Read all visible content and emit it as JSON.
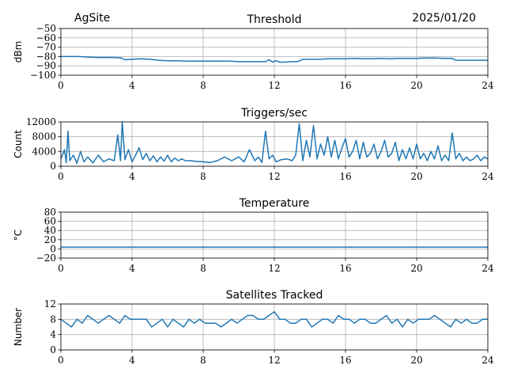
{
  "header": {
    "site": "AgSite",
    "date": "2025/01/20"
  },
  "colors": {
    "series": "#1f77b4",
    "grid": "#b0b0b0"
  },
  "chart_data": [
    {
      "type": "line",
      "title": "Threshold",
      "ylabel": "dBm",
      "xlim": [
        0,
        24
      ],
      "ylim": [
        -100,
        -50
      ],
      "xticks": [
        0,
        4,
        8,
        12,
        16,
        20,
        24
      ],
      "yticks": [
        -100,
        -90,
        -80,
        -70,
        -60,
        -50
      ],
      "ytick_labels": [
        "−100",
        "−90",
        "−80",
        "−70",
        "−60",
        "−50"
      ],
      "grid": true,
      "series": [
        {
          "x": [
            0,
            0.5,
            1,
            1.5,
            2,
            2.5,
            3,
            3.4,
            3.6,
            4,
            4.5,
            5,
            5.5,
            6,
            6.5,
            7,
            7.5,
            8,
            8.5,
            9,
            9.5,
            10,
            10.5,
            11,
            11.5,
            11.7,
            11.9,
            12.1,
            12.3,
            12.6,
            13,
            13.3,
            13.6,
            14,
            14.5,
            15,
            15.5,
            16,
            16.5,
            17,
            17.5,
            18,
            18.5,
            19,
            19.5,
            20,
            20.5,
            21,
            21.5,
            22,
            22.2,
            22.6,
            23,
            23.5,
            24
          ],
          "y": [
            -80,
            -80,
            -80,
            -80.5,
            -81,
            -81,
            -81,
            -81.5,
            -83.5,
            -83,
            -82.5,
            -83,
            -84,
            -84.5,
            -84.5,
            -85,
            -85,
            -85,
            -85,
            -85,
            -85,
            -85.5,
            -85.5,
            -85.5,
            -85.5,
            -83.5,
            -86,
            -84.5,
            -86,
            -86,
            -85.5,
            -85.5,
            -83,
            -83,
            -83,
            -82.5,
            -82.5,
            -82.5,
            -82,
            -82.5,
            -82.5,
            -82,
            -82.5,
            -82,
            -82,
            -82,
            -81.5,
            -81.5,
            -82,
            -82,
            -84,
            -84,
            -84,
            -84,
            -84
          ]
        }
      ]
    },
    {
      "type": "line",
      "title": "Triggers/sec",
      "ylabel": "Count",
      "xlim": [
        0,
        24
      ],
      "ylim": [
        0,
        12000
      ],
      "xticks": [
        0,
        4,
        8,
        12,
        16,
        20,
        24
      ],
      "yticks": [
        0,
        4000,
        8000,
        12000
      ],
      "ytick_labels": [
        "0",
        "4000",
        "8000",
        "12000"
      ],
      "grid": true,
      "series": [
        {
          "x": [
            0,
            0.2,
            0.3,
            0.4,
            0.5,
            0.7,
            0.9,
            1.1,
            1.3,
            1.5,
            1.8,
            2.1,
            2.4,
            2.7,
            3.0,
            3.2,
            3.35,
            3.45,
            3.6,
            3.8,
            4.0,
            4.2,
            4.4,
            4.6,
            4.8,
            5.0,
            5.2,
            5.4,
            5.6,
            5.8,
            6.0,
            6.2,
            6.4,
            6.6,
            6.8,
            7.0,
            7.3,
            7.6,
            8.0,
            8.4,
            8.8,
            9.2,
            9.6,
            10.0,
            10.3,
            10.6,
            10.9,
            11.1,
            11.3,
            11.5,
            11.7,
            11.9,
            12.1,
            12.4,
            12.7,
            13.0,
            13.2,
            13.4,
            13.6,
            13.8,
            14.0,
            14.2,
            14.4,
            14.6,
            14.8,
            15.0,
            15.2,
            15.4,
            15.6,
            15.8,
            16.0,
            16.2,
            16.4,
            16.6,
            16.8,
            17.0,
            17.2,
            17.4,
            17.6,
            17.8,
            18.0,
            18.2,
            18.4,
            18.6,
            18.8,
            19.0,
            19.2,
            19.4,
            19.6,
            19.8,
            20.0,
            20.2,
            20.4,
            20.6,
            20.8,
            21.0,
            21.2,
            21.4,
            21.6,
            21.8,
            22.0,
            22.2,
            22.4,
            22.6,
            22.8,
            23.0,
            23.2,
            23.4,
            23.6,
            23.8,
            24.0
          ],
          "y": [
            2000,
            4500,
            1000,
            9500,
            1500,
            3000,
            800,
            4000,
            1200,
            2500,
            900,
            3000,
            1200,
            2000,
            1500,
            8500,
            1500,
            12000,
            1800,
            4500,
            1200,
            3000,
            5000,
            1800,
            3500,
            1500,
            2800,
            1200,
            2500,
            1400,
            3000,
            1200,
            2200,
            1500,
            2000,
            1500,
            1500,
            1300,
            1200,
            1000,
            1500,
            2500,
            1500,
            2500,
            1200,
            4500,
            1500,
            2500,
            1000,
            9500,
            2000,
            3000,
            1200,
            1800,
            2000,
            1500,
            3000,
            11500,
            1500,
            7000,
            2500,
            11000,
            2000,
            6000,
            3000,
            8000,
            2500,
            7000,
            2000,
            5000,
            7500,
            2500,
            4000,
            7000,
            2000,
            6500,
            2500,
            3500,
            6000,
            2000,
            4000,
            7000,
            2500,
            3500,
            6500,
            1500,
            4500,
            2000,
            5000,
            2000,
            6000,
            2000,
            3500,
            1500,
            4000,
            2000,
            5500,
            1500,
            3000,
            1500,
            9000,
            2000,
            3500,
            1500,
            2500,
            1500,
            2000,
            3000,
            1500,
            2500,
            2000
          ]
        }
      ]
    },
    {
      "type": "line",
      "title": "Temperature",
      "ylabel": "°C",
      "xlim": [
        0,
        24
      ],
      "ylim": [
        -20,
        80
      ],
      "xticks": [
        0,
        4,
        8,
        12,
        16,
        20,
        24
      ],
      "yticks": [
        -20,
        0,
        20,
        40,
        60,
        80
      ],
      "ytick_labels": [
        "−20",
        "0",
        "20",
        "40",
        "60",
        "80"
      ],
      "grid": true,
      "series": [
        {
          "x": [
            0,
            24
          ],
          "y": [
            4,
            4
          ]
        }
      ]
    },
    {
      "type": "line",
      "title": "Satellites Tracked",
      "ylabel": "Number",
      "xlim": [
        0,
        24
      ],
      "ylim": [
        0,
        12
      ],
      "xticks": [
        0,
        4,
        8,
        12,
        16,
        20,
        24
      ],
      "yticks": [
        0,
        4,
        8,
        12
      ],
      "ytick_labels": [
        "0",
        "4",
        "8",
        "12"
      ],
      "grid": true,
      "series": [
        {
          "x": [
            0,
            0.3,
            0.6,
            0.9,
            1.2,
            1.5,
            1.8,
            2.1,
            2.4,
            2.7,
            3.0,
            3.3,
            3.6,
            3.9,
            4.2,
            4.5,
            4.8,
            5.1,
            5.4,
            5.7,
            6.0,
            6.3,
            6.6,
            6.9,
            7.2,
            7.5,
            7.8,
            8.1,
            8.4,
            8.7,
            9.0,
            9.3,
            9.6,
            9.9,
            10.2,
            10.5,
            10.8,
            11.1,
            11.4,
            11.7,
            12.0,
            12.3,
            12.6,
            12.9,
            13.2,
            13.5,
            13.8,
            14.1,
            14.4,
            14.7,
            15.0,
            15.3,
            15.6,
            15.9,
            16.2,
            16.5,
            16.8,
            17.1,
            17.4,
            17.7,
            18.0,
            18.3,
            18.6,
            18.9,
            19.2,
            19.5,
            19.8,
            20.1,
            20.4,
            20.7,
            21.0,
            21.3,
            21.6,
            21.9,
            22.2,
            22.5,
            22.8,
            23.1,
            23.4,
            23.7,
            24.0
          ],
          "y": [
            8,
            7,
            6,
            8,
            7,
            9,
            8,
            7,
            8,
            9,
            8,
            7,
            9,
            8,
            8,
            8,
            8,
            6,
            7,
            8,
            6,
            8,
            7,
            6,
            8,
            7,
            8,
            7,
            7,
            7,
            6,
            7,
            8,
            7,
            8,
            9,
            9,
            8,
            8,
            9,
            10,
            8,
            8,
            7,
            7,
            8,
            8,
            6,
            7,
            8,
            8,
            7,
            9,
            8,
            8,
            7,
            8,
            8,
            7,
            7,
            8,
            9,
            7,
            8,
            6,
            8,
            7,
            8,
            8,
            8,
            9,
            8,
            7,
            6,
            8,
            7,
            8,
            7,
            7,
            8,
            8
          ]
        }
      ]
    }
  ]
}
